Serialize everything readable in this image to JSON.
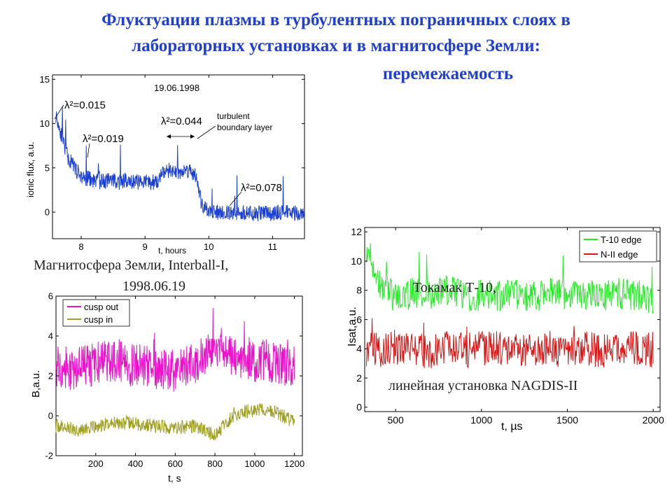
{
  "page": {
    "title_line1": "Флуктуации плазмы в турбулентных пограничных слоях в",
    "title_line2": "лабораторных установках и в магнитосфере Земли:",
    "title_line3": "перемежаемость",
    "caption_magnetosphere_1": "Магнитосфера Земли, Interball-I,",
    "caption_magnetosphere_2": "1998.06.19",
    "caption_tokamak": "Токамак Т-10,",
    "caption_linear": "линейная установка NAGDIS-II"
  },
  "chart_data": [
    {
      "type": "line",
      "title": "19.06.1998",
      "xlabel": "t, hours",
      "ylabel": "ionic flux, a.u.",
      "xlim": [
        7.55,
        11.5
      ],
      "ylim": [
        -3,
        15.5
      ],
      "xticks": [
        "8",
        "9",
        "10",
        "11"
      ],
      "yticks": [
        "0",
        "5",
        "10",
        "15"
      ],
      "color": "#1a3fd6",
      "annotations": [
        "λ²=0.015",
        "λ²=0.019",
        "λ²=0.044",
        "λ²=0.078",
        "turbulent",
        "boundary layer"
      ],
      "series": [
        {
          "x": [
            7.6,
            7.7,
            7.8,
            7.9,
            8.0,
            8.1,
            8.2,
            8.3,
            8.4,
            8.5,
            8.6,
            8.7,
            8.8,
            8.9,
            9.0,
            9.1,
            9.2,
            9.3,
            9.4,
            9.5,
            9.6,
            9.7,
            9.8,
            9.9,
            10.0,
            10.1,
            10.2,
            10.3,
            10.4,
            10.5,
            10.6,
            10.7,
            10.8,
            10.9,
            11.0,
            11.1,
            11.2,
            11.3,
            11.4,
            11.5
          ],
          "values": [
            11,
            8.5,
            6,
            5,
            4,
            3.8,
            3.6,
            3.5,
            3.5,
            3.7,
            3.4,
            3.6,
            3.5,
            3.4,
            3.5,
            3.3,
            3.6,
            4.5,
            4.8,
            4.5,
            4.6,
            4.8,
            4.0,
            0.5,
            0.1,
            0,
            -0.1,
            0,
            -0.2,
            0,
            0,
            -0.3,
            -0.1,
            0,
            -0.2,
            0,
            -0.1,
            0,
            -0.1,
            0
          ]
        }
      ]
    },
    {
      "type": "line",
      "xlabel": "t, s",
      "ylabel": "B,a.u.",
      "xlim": [
        0,
        1240
      ],
      "ylim": [
        -2,
        6
      ],
      "xticks": [
        "200",
        "400",
        "600",
        "800",
        "1000",
        "1200"
      ],
      "yticks": [
        "-2",
        "0",
        "2",
        "4",
        "6"
      ],
      "legend": "top-left",
      "series": [
        {
          "name": "cusp out",
          "color": "#ee11cc",
          "x": [
            0,
            100,
            200,
            300,
            400,
            500,
            600,
            700,
            800,
            900,
            1000,
            1100,
            1200
          ],
          "values": [
            2.5,
            2.3,
            2.6,
            2.8,
            2.5,
            2.4,
            2.2,
            2.7,
            3.5,
            3.0,
            2.8,
            2.6,
            2.5
          ]
        },
        {
          "name": "cusp in",
          "color": "#a0a020",
          "x": [
            0,
            100,
            200,
            300,
            400,
            500,
            600,
            700,
            800,
            900,
            1000,
            1100,
            1200
          ],
          "values": [
            -0.5,
            -0.7,
            -0.6,
            -0.3,
            -0.4,
            -0.5,
            -0.6,
            -0.5,
            -1.0,
            0.1,
            0.3,
            0.2,
            -0.3
          ]
        }
      ]
    },
    {
      "type": "line",
      "xlabel": "t, µs",
      "ylabel": "Isat,a.u.",
      "xlim": [
        320,
        2040
      ],
      "ylim": [
        -0.3,
        12.3
      ],
      "xticks": [
        "500",
        "1000",
        "1500",
        "2000"
      ],
      "yticks": [
        "0",
        "2",
        "4",
        "6",
        "8",
        "10",
        "12"
      ],
      "legend": "top-right",
      "series": [
        {
          "name": "T-10 edge",
          "color": "#22ee22",
          "x": [
            330,
            400,
            500,
            600,
            700,
            800,
            900,
            1000,
            1100,
            1200,
            1300,
            1400,
            1500,
            1600,
            1700,
            1800,
            1900,
            2000
          ],
          "values": [
            11,
            8.5,
            7.5,
            7.8,
            7.6,
            8.0,
            7.5,
            7.7,
            7.6,
            7.8,
            7.5,
            7.9,
            7.6,
            7.7,
            7.5,
            7.8,
            7.6,
            7.5
          ]
        },
        {
          "name": "N-II edge",
          "color": "#dd1111",
          "x": [
            330,
            400,
            500,
            600,
            700,
            800,
            900,
            1000,
            1100,
            1200,
            1300,
            1400,
            1500,
            1600,
            1700,
            1800,
            1900,
            2000
          ],
          "values": [
            4.0,
            3.9,
            4.1,
            4.0,
            3.8,
            4.2,
            3.9,
            4.0,
            4.1,
            3.9,
            4.0,
            3.8,
            4.1,
            4.0,
            3.9,
            4.0,
            4.1,
            3.9
          ]
        }
      ]
    }
  ]
}
